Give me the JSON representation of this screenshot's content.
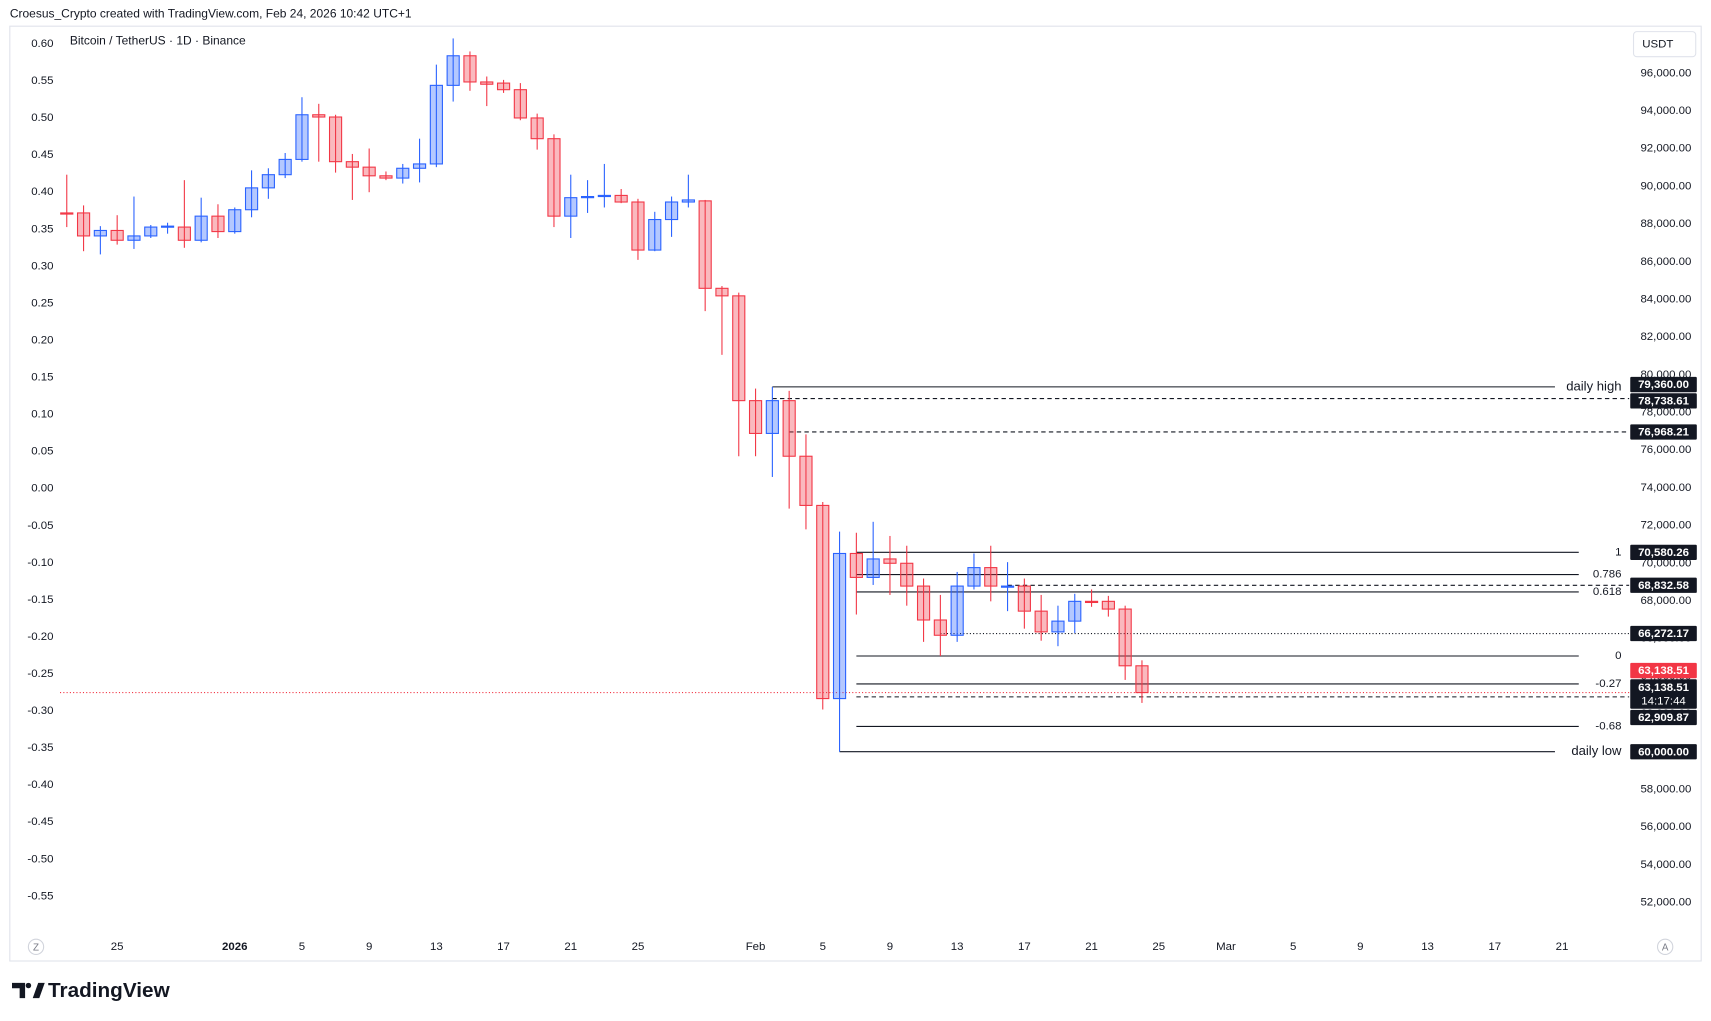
{
  "chart_data": {
    "type": "candlestick",
    "header": "Croesus_Crypto created with TradingView.com, Feb 24, 2026 10:42 UTC+1",
    "title": "Bitcoin / TetherUS · 1D · Binance",
    "currency": "USDT",
    "brand": "TradingView",
    "scale_buttons": [
      "Z",
      "A"
    ],
    "up_color": "#2962ff",
    "down_color": "#f23645",
    "x": [
      "Dec 22",
      "Dec 23",
      "Dec 24",
      "Dec 25",
      "Dec 26",
      "Dec 27",
      "Dec 28",
      "Dec 29",
      "Dec 30",
      "Dec 31",
      "Jan 1",
      "Jan 2",
      "Jan 3",
      "Jan 4",
      "Jan 5",
      "Jan 6",
      "Jan 7",
      "Jan 8",
      "Jan 9",
      "Jan 10",
      "Jan 11",
      "Jan 12",
      "Jan 13",
      "Jan 14",
      "Jan 15",
      "Jan 16",
      "Jan 17",
      "Jan 18",
      "Jan 19",
      "Jan 20",
      "Jan 21",
      "Jan 22",
      "Jan 23",
      "Jan 24",
      "Jan 25",
      "Jan 26",
      "Jan 27",
      "Jan 28",
      "Jan 29",
      "Jan 30",
      "Jan 31",
      "Feb 1",
      "Feb 2",
      "Feb 3",
      "Feb 4",
      "Feb 5",
      "Feb 6",
      "Feb 7",
      "Feb 8",
      "Feb 9",
      "Feb 10",
      "Feb 11",
      "Feb 12",
      "Feb 13",
      "Feb 14",
      "Feb 15",
      "Feb 16",
      "Feb 17",
      "Feb 18",
      "Feb 19",
      "Feb 20",
      "Feb 21",
      "Feb 22",
      "Feb 23",
      "Feb 24"
    ],
    "open": [
      88590,
      88590,
      87370,
      87660,
      87140,
      87370,
      87840,
      87840,
      87140,
      88420,
      87600,
      88760,
      89920,
      90620,
      91430,
      93800,
      93680,
      91310,
      91020,
      90560,
      90440,
      90960,
      91190,
      95360,
      96930,
      95540,
      95480,
      95130,
      93630,
      92530,
      88420,
      89400,
      89460,
      89520,
      89170,
      86620,
      88240,
      89170,
      89230,
      84590,
      84190,
      78630,
      76890,
      78630,
      75680,
      73070,
      62820,
      70520,
      69250,
      70230,
      70000,
      68790,
      66990,
      66180,
      68790,
      69770,
      68730,
      68790,
      67460,
      66360,
      66930,
      67980,
      67980,
      67570,
      64560
    ],
    "high": [
      90620,
      88990,
      87890,
      88470,
      89460,
      87950,
      88070,
      90330,
      89400,
      89050,
      88880,
      90850,
      90960,
      91770,
      94730,
      94380,
      93800,
      91720,
      92010,
      90790,
      91190,
      92530,
      96460,
      97850,
      97160,
      95830,
      95650,
      95480,
      93860,
      92760,
      90620,
      90330,
      91190,
      89860,
      89340,
      88650,
      89460,
      90620,
      89280,
      84710,
      84360,
      79270,
      79360,
      79150,
      76840,
      73250,
      71680,
      71620,
      72200,
      71450,
      70930,
      69190,
      68320,
      69540,
      70520,
      70930,
      70060,
      69190,
      68320,
      67750,
      68380,
      68610,
      68270,
      67750,
      64850
    ],
    "low": [
      87840,
      86560,
      86390,
      86910,
      86680,
      87260,
      87490,
      86740,
      87030,
      87260,
      87490,
      88360,
      89340,
      90440,
      91310,
      91310,
      90730,
      89280,
      89690,
      90330,
      90150,
      90210,
      91020,
      94500,
      95070,
      94260,
      94960,
      93510,
      91950,
      87840,
      87260,
      88590,
      88880,
      89110,
      86100,
      86560,
      87320,
      88880,
      83380,
      81060,
      75680,
      75680,
      74580,
      72900,
      71800,
      62240,
      60000,
      67280,
      68850,
      68320,
      67750,
      65830,
      65080,
      65830,
      68610,
      67980,
      67460,
      66530,
      65890,
      65600,
      66300,
      67690,
      67170,
      63810,
      62590
    ],
    "close": [
      88530,
      87370,
      87660,
      87140,
      87370,
      87840,
      87890,
      87140,
      88420,
      87600,
      88760,
      89920,
      90620,
      91430,
      93800,
      93680,
      91310,
      91020,
      90560,
      90440,
      90960,
      91190,
      95360,
      96930,
      95540,
      95420,
      95130,
      93630,
      92530,
      88420,
      89400,
      89460,
      89520,
      89170,
      86620,
      88240,
      89170,
      89280,
      84590,
      84190,
      78630,
      76890,
      78630,
      75680,
      73070,
      62820,
      70520,
      69250,
      70230,
      70000,
      68790,
      66990,
      66180,
      68790,
      69770,
      68790,
      68790,
      67460,
      66360,
      66930,
      67980,
      67920,
      67570,
      64560,
      63138.51
    ],
    "xlim": [
      "Dec 19",
      "Mar 25"
    ],
    "xticks": [
      {
        "value": "Dec 25",
        "label": "25"
      },
      {
        "value": "Jan 1",
        "label": "2026"
      },
      {
        "value": "Jan 5",
        "label": "5"
      },
      {
        "value": "Jan 9",
        "label": "9"
      },
      {
        "value": "Jan 13",
        "label": "13"
      },
      {
        "value": "Jan 17",
        "label": "17"
      },
      {
        "value": "Jan 21",
        "label": "21"
      },
      {
        "value": "Jan 25",
        "label": "25"
      },
      {
        "value": "Feb 1",
        "label": "Feb"
      },
      {
        "value": "Feb 5",
        "label": "5"
      },
      {
        "value": "Feb 9",
        "label": "9"
      },
      {
        "value": "Feb 13",
        "label": "13"
      },
      {
        "value": "Feb 17",
        "label": "17"
      },
      {
        "value": "Feb 21",
        "label": "21"
      },
      {
        "value": "Feb 25",
        "label": "25"
      },
      {
        "value": "Mar 1",
        "label": "Mar"
      },
      {
        "value": "Mar 5",
        "label": "5"
      },
      {
        "value": "Mar 9",
        "label": "9"
      },
      {
        "value": "Mar 13",
        "label": "13"
      },
      {
        "value": "Mar 17",
        "label": "17"
      },
      {
        "value": "Mar 21",
        "label": "21"
      }
    ],
    "ylim": [
      50400,
      98500
    ],
    "yticks": [
      {
        "value": 52000,
        "label": "52,000.00"
      },
      {
        "value": 54000,
        "label": "54,000.00"
      },
      {
        "value": 56000,
        "label": "56,000.00"
      },
      {
        "value": 58000,
        "label": "58,000.00"
      },
      {
        "value": 60000,
        "label": "60,000.00"
      },
      {
        "value": 62000,
        "label": "62,000.00"
      },
      {
        "value": 64000,
        "label": "64,000.00"
      },
      {
        "value": 66000,
        "label": "66,000.00"
      },
      {
        "value": 68000,
        "label": "68,000.00"
      },
      {
        "value": 70000,
        "label": "70,000.00"
      },
      {
        "value": 72000,
        "label": "72,000.00"
      },
      {
        "value": 74000,
        "label": "74,000.00"
      },
      {
        "value": 76000,
        "label": "76,000.00"
      },
      {
        "value": 78000,
        "label": "78,000.00"
      },
      {
        "value": 80000,
        "label": "80,000.00"
      },
      {
        "value": 82000,
        "label": "82,000.00"
      },
      {
        "value": 84000,
        "label": "84,000.00"
      },
      {
        "value": 86000,
        "label": "86,000.00"
      },
      {
        "value": 88000,
        "label": "88,000.00"
      },
      {
        "value": 90000,
        "label": "90,000.00"
      },
      {
        "value": 92000,
        "label": "92,000.00"
      },
      {
        "value": 94000,
        "label": "94,000.00"
      },
      {
        "value": 96000,
        "label": "96,000.00"
      }
    ],
    "y2lim": [
      -0.599,
      0.624
    ],
    "y2ticks": [
      {
        "value": 0.6,
        "label": "0.60"
      },
      {
        "value": 0.55,
        "label": "0.55"
      },
      {
        "value": 0.5,
        "label": "0.50"
      },
      {
        "value": 0.45,
        "label": "0.45"
      },
      {
        "value": 0.4,
        "label": "0.40"
      },
      {
        "value": 0.35,
        "label": "0.35"
      },
      {
        "value": 0.3,
        "label": "0.30"
      },
      {
        "value": 0.25,
        "label": "0.25"
      },
      {
        "value": 0.2,
        "label": "0.20"
      },
      {
        "value": 0.15,
        "label": "0.15"
      },
      {
        "value": 0.1,
        "label": "0.10"
      },
      {
        "value": 0.05,
        "label": "0.05"
      },
      {
        "value": 0,
        "label": "0.00"
      },
      {
        "value": -0.05,
        "label": "-0.05"
      },
      {
        "value": -0.1,
        "label": "-0.10"
      },
      {
        "value": -0.15,
        "label": "-0.15"
      },
      {
        "value": -0.2,
        "label": "-0.20"
      },
      {
        "value": -0.25,
        "label": "-0.25"
      },
      {
        "value": -0.3,
        "label": "-0.30"
      },
      {
        "value": -0.35,
        "label": "-0.35"
      },
      {
        "value": -0.4,
        "label": "-0.40"
      },
      {
        "value": -0.45,
        "label": "-0.45"
      },
      {
        "value": -0.5,
        "label": "-0.50"
      },
      {
        "value": -0.55,
        "label": "-0.55"
      }
    ],
    "grid": false,
    "hlines": [
      {
        "label": "daily high",
        "price": {
          "value": 79360,
          "label": "79,360.00"
        },
        "start": "Feb 2",
        "style": "solid"
      },
      {
        "price": {
          "value": 78738.61,
          "label": "78,738.61"
        },
        "start": "Feb 2",
        "style": "dashed"
      },
      {
        "price": {
          "value": 76968.21,
          "label": "76,968.21"
        },
        "start": "Feb 3",
        "style": "dashed"
      },
      {
        "price": {
          "value": 68832.58,
          "label": "68,832.58"
        },
        "start": "Feb 16",
        "style": "dashed"
      },
      {
        "price": {
          "value": 66272.17,
          "label": "66,272.17"
        },
        "start": "Feb 12",
        "style": "dotted"
      },
      {
        "price": {
          "value": 62909.87,
          "label": "62,909.87"
        },
        "start": "Feb 7",
        "style": "dashed"
      },
      {
        "label": "daily low",
        "price": {
          "value": 60000,
          "label": "60,000.00"
        },
        "start": "Feb 6",
        "style": "solid"
      }
    ],
    "fib": {
      "start": "Feb 7",
      "end": "Mar 22",
      "levels": [
        {
          "level": 1,
          "price": {
            "value": 70580.26,
            "label": "70,580.26"
          }
        },
        {
          "level": 0.786,
          "price": 69403
        },
        {
          "level": 0.618,
          "price": 68479
        },
        {
          "level": 0,
          "price": 65080
        },
        {
          "level": -0.27,
          "price": 63595
        },
        {
          "level": -0.68,
          "price": 61340
        }
      ]
    },
    "last_price": {
      "value": 63138.51,
      "label": "63,138.51",
      "color": "#f23645"
    },
    "price_tag": {
      "value": 63138.51,
      "label": "63,138.51",
      "countdown": "14:17:44",
      "color": "#131722"
    }
  }
}
